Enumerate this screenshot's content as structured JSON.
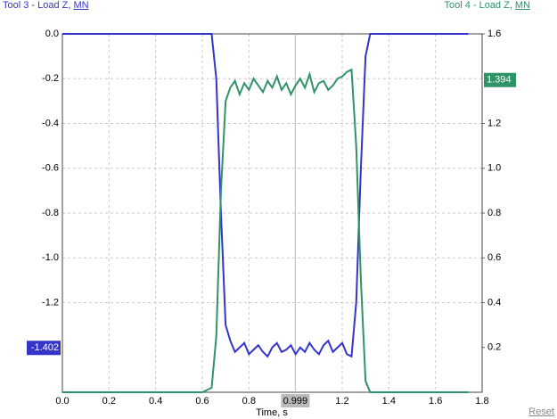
{
  "chart_data": {
    "type": "line",
    "x_label": "Time, s",
    "x": [
      0,
      0.2,
      0.4,
      0.6,
      0.64,
      0.66,
      0.68,
      0.7,
      0.72,
      0.74,
      0.76,
      0.78,
      0.8,
      0.82,
      0.84,
      0.86,
      0.88,
      0.9,
      0.92,
      0.94,
      0.96,
      0.98,
      1.0,
      1.02,
      1.04,
      1.06,
      1.08,
      1.1,
      1.12,
      1.14,
      1.16,
      1.18,
      1.2,
      1.22,
      1.24,
      1.26,
      1.28,
      1.3,
      1.32,
      1.34,
      1.5,
      1.74
    ],
    "series": [
      {
        "name": "Tool 3 - Load Z,",
        "unit": "MN",
        "color": "#3434c8",
        "axis": "y",
        "values": [
          0,
          0,
          0,
          0,
          0,
          -0.2,
          -0.8,
          -1.3,
          -1.37,
          -1.42,
          -1.4,
          -1.38,
          -1.43,
          -1.41,
          -1.39,
          -1.42,
          -1.44,
          -1.4,
          -1.38,
          -1.42,
          -1.41,
          -1.39,
          -1.43,
          -1.4,
          -1.42,
          -1.38,
          -1.41,
          -1.43,
          -1.39,
          -1.37,
          -1.42,
          -1.4,
          -1.38,
          -1.43,
          -1.44,
          -1.2,
          -0.6,
          -0.1,
          0,
          0,
          0,
          0
        ]
      },
      {
        "name": "Tool 4 - Load Z,",
        "unit": "MN",
        "color": "#2e9466",
        "axis": "y2",
        "values": [
          0,
          0,
          0,
          0,
          0.02,
          0.25,
          0.9,
          1.3,
          1.36,
          1.39,
          1.33,
          1.38,
          1.35,
          1.4,
          1.37,
          1.34,
          1.39,
          1.36,
          1.41,
          1.35,
          1.38,
          1.33,
          1.37,
          1.4,
          1.36,
          1.42,
          1.34,
          1.38,
          1.39,
          1.35,
          1.37,
          1.4,
          1.41,
          1.43,
          1.44,
          1.1,
          0.5,
          0.05,
          0,
          0,
          0,
          0
        ]
      }
    ],
    "xlim": [
      0,
      1.8
    ],
    "xticks": [
      {
        "value": 0,
        "label": "0.0"
      },
      0.2,
      0.4,
      0.6,
      0.8,
      1.2,
      1.4,
      1.6,
      1.8
    ],
    "ylim": [
      -1.6,
      0
    ],
    "yticks": [
      {
        "value": 0,
        "label": "0.0"
      },
      -0.2,
      -0.4,
      -0.6,
      -0.8,
      {
        "value": -1,
        "label": "-1.0"
      },
      -1.2
    ],
    "y2lim": [
      0,
      1.6
    ],
    "y2ticks": [
      1.6,
      1.2,
      {
        "value": 1,
        "label": "1.0"
      },
      0.8,
      0.6,
      0.4,
      0.2
    ],
    "grid": true,
    "cursor": {
      "x": 0.999,
      "y": -1.402,
      "y2": 1.394
    },
    "reset": "Reset"
  }
}
